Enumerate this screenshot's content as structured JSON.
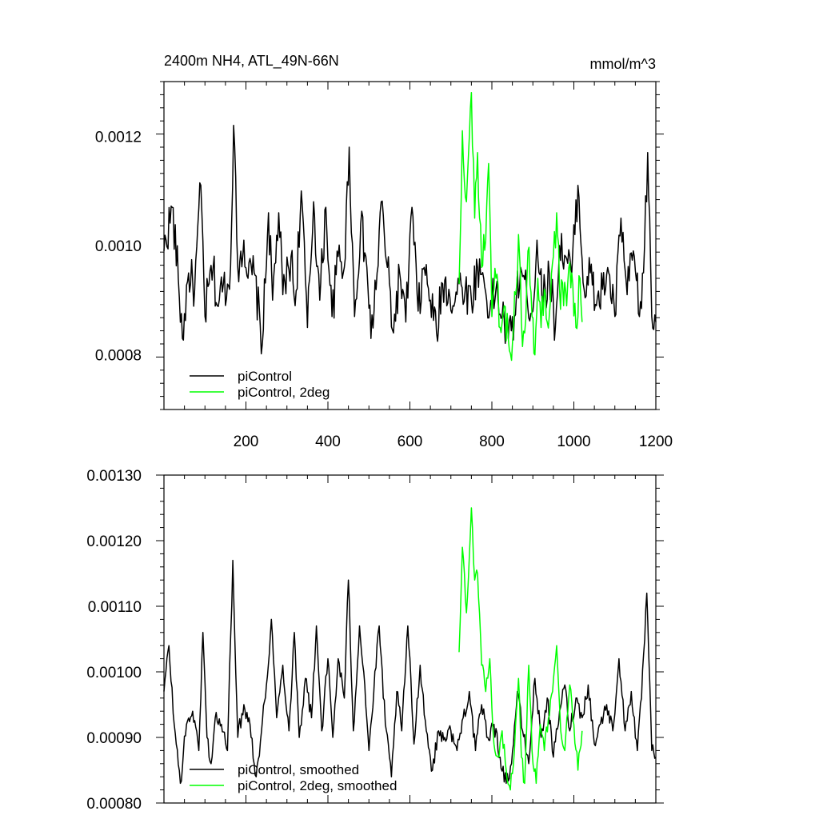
{
  "chart_data": [
    {
      "type": "line",
      "title": "2400m NH4, ATL_49N-66N",
      "units": "mmol/m^3",
      "xlim": [
        0,
        1200
      ],
      "ylim": [
        0.0007,
        0.0013
      ],
      "x_ticks": [
        200,
        400,
        600,
        800,
        1000,
        1200
      ],
      "y_ticks": [
        "0.0008",
        "0.0010",
        "0.0012"
      ],
      "y_tick_values": [
        0.0008,
        0.001,
        0.0012
      ],
      "legend_position": "bottom-left",
      "series": [
        {
          "name": "piControl",
          "color": "#000000",
          "x_start": 0,
          "x_end": 1200,
          "points": [
            [
              0,
              0.00099
            ],
            [
              20,
              0.00107
            ],
            [
              35,
              0.00094
            ],
            [
              45,
              0.00083
            ],
            [
              60,
              0.00095
            ],
            [
              75,
              0.00092
            ],
            [
              90,
              0.00111
            ],
            [
              100,
              0.00087
            ],
            [
              110,
              0.00093
            ],
            [
              120,
              0.00096
            ],
            [
              130,
              0.00089
            ],
            [
              145,
              0.00093
            ],
            [
              160,
              0.00092
            ],
            [
              170,
              0.00122
            ],
            [
              180,
              0.00096
            ],
            [
              195,
              0.00101
            ],
            [
              205,
              0.00094
            ],
            [
              220,
              0.00095
            ],
            [
              240,
              0.00082
            ],
            [
              255,
              0.00106
            ],
            [
              265,
              0.0009
            ],
            [
              280,
              0.00106
            ],
            [
              290,
              0.00091
            ],
            [
              310,
              0.00098
            ],
            [
              320,
              0.00089
            ],
            [
              335,
              0.0011
            ],
            [
              350,
              0.00085
            ],
            [
              365,
              0.00108
            ],
            [
              380,
              0.0009
            ],
            [
              395,
              0.00107
            ],
            [
              410,
              0.00087
            ],
            [
              425,
              0.00098
            ],
            [
              440,
              0.00096
            ],
            [
              452,
              0.00118
            ],
            [
              465,
              0.00087
            ],
            [
              480,
              0.00104
            ],
            [
              495,
              0.00096
            ],
            [
              505,
              0.00083
            ],
            [
              520,
              0.00095
            ],
            [
              530,
              0.00108
            ],
            [
              545,
              0.00096
            ],
            [
              560,
              0.00084
            ],
            [
              575,
              0.00095
            ],
            [
              590,
              0.00086
            ],
            [
              605,
              0.00107
            ],
            [
              620,
              0.00088
            ],
            [
              635,
              0.00096
            ],
            [
              650,
              0.0009
            ],
            [
              665,
              0.00084
            ],
            [
              680,
              0.00093
            ],
            [
              695,
              0.00092
            ],
            [
              705,
              0.00089
            ],
            [
              720,
              0.00093
            ],
            [
              735,
              0.00092
            ],
            [
              750,
              0.0009
            ],
            [
              765,
              0.00096
            ],
            [
              780,
              0.00094
            ],
            [
              795,
              0.00088
            ],
            [
              810,
              0.00092
            ],
            [
              825,
              0.00087
            ],
            [
              840,
              0.00083
            ],
            [
              855,
              0.00087
            ],
            [
              870,
              0.00096
            ],
            [
              885,
              0.00091
            ],
            [
              900,
              0.00088
            ],
            [
              910,
              0.00101
            ],
            [
              925,
              0.0009
            ],
            [
              940,
              0.00095
            ],
            [
              955,
              0.00085
            ],
            [
              965,
              0.001
            ],
            [
              980,
              0.00098
            ],
            [
              995,
              0.00095
            ],
            [
              1010,
              0.00111
            ],
            [
              1025,
              0.00092
            ],
            [
              1040,
              0.00095
            ],
            [
              1055,
              0.00089
            ],
            [
              1070,
              0.00092
            ],
            [
              1085,
              0.00095
            ],
            [
              1100,
              0.00087
            ],
            [
              1115,
              0.00105
            ],
            [
              1130,
              0.00091
            ],
            [
              1145,
              0.00099
            ],
            [
              1160,
              0.00087
            ],
            [
              1170,
              0.00095
            ],
            [
              1180,
              0.00117
            ],
            [
              1190,
              0.00087
            ],
            [
              1200,
              0.00086
            ]
          ]
        },
        {
          "name": "piControl, 2deg",
          "color": "#00ff00",
          "x_start": 720,
          "x_end": 1020,
          "points": [
            [
              720,
              0.00093
            ],
            [
              728,
              0.00121
            ],
            [
              738,
              0.00108
            ],
            [
              750,
              0.00128
            ],
            [
              758,
              0.00105
            ],
            [
              765,
              0.00117
            ],
            [
              775,
              0.00096
            ],
            [
              785,
              0.00101
            ],
            [
              792,
              0.00115
            ],
            [
              800,
              0.00087
            ],
            [
              810,
              0.00094
            ],
            [
              820,
              0.00085
            ],
            [
              830,
              0.00089
            ],
            [
              840,
              0.00083
            ],
            [
              848,
              0.00079
            ],
            [
              858,
              0.00091
            ],
            [
              865,
              0.00102
            ],
            [
              872,
              0.00086
            ],
            [
              880,
              0.00084
            ],
            [
              888,
              0.00099
            ],
            [
              898,
              0.00087
            ],
            [
              905,
              0.0008
            ],
            [
              912,
              0.00094
            ],
            [
              920,
              0.00085
            ],
            [
              928,
              0.00092
            ],
            [
              935,
              0.00086
            ],
            [
              943,
              0.0009
            ],
            [
              950,
              0.00098
            ],
            [
              958,
              0.00106
            ],
            [
              965,
              0.00092
            ],
            [
              975,
              0.00089
            ],
            [
              985,
              0.00093
            ],
            [
              995,
              0.00095
            ],
            [
              1005,
              0.00085
            ],
            [
              1015,
              0.00094
            ],
            [
              1020,
              0.00086
            ]
          ]
        }
      ],
      "legend": [
        "piControl",
        "piControl, 2deg"
      ]
    },
    {
      "type": "line",
      "title": "",
      "xlim": [
        0,
        1200
      ],
      "ylim": [
        0.0008,
        0.0013
      ],
      "y_ticks": [
        "0.00130",
        "0.00120",
        "0.00110",
        "0.00100",
        "0.00090",
        "0.00080"
      ],
      "y_tick_values": [
        0.0013,
        0.0012,
        0.0011,
        0.001,
        0.0009,
        0.0008
      ],
      "legend_position": "bottom-left",
      "series": [
        {
          "name": "piControl, smoothed",
          "color": "#000000",
          "x_start": 0,
          "x_end": 1200,
          "points": [
            [
              0,
              0.00097
            ],
            [
              12,
              0.00104
            ],
            [
              25,
              0.00092
            ],
            [
              40,
              0.00083
            ],
            [
              55,
              0.00092
            ],
            [
              70,
              0.00094
            ],
            [
              85,
              0.00088
            ],
            [
              95,
              0.00106
            ],
            [
              105,
              0.0009
            ],
            [
              115,
              0.00086
            ],
            [
              125,
              0.00093
            ],
            [
              140,
              0.00092
            ],
            [
              155,
              0.00088
            ],
            [
              168,
              0.00117
            ],
            [
              180,
              0.0009
            ],
            [
              195,
              0.00095
            ],
            [
              210,
              0.00092
            ],
            [
              225,
              0.00084
            ],
            [
              238,
              0.00091
            ],
            [
              250,
              0.00098
            ],
            [
              262,
              0.00108
            ],
            [
              275,
              0.00093
            ],
            [
              290,
              0.00101
            ],
            [
              305,
              0.00091
            ],
            [
              318,
              0.00106
            ],
            [
              330,
              0.0009
            ],
            [
              345,
              0.00099
            ],
            [
              360,
              0.00093
            ],
            [
              372,
              0.00107
            ],
            [
              385,
              0.00091
            ],
            [
              400,
              0.00102
            ],
            [
              412,
              0.0009
            ],
            [
              425,
              0.00102
            ],
            [
              440,
              0.00096
            ],
            [
              450,
              0.00114
            ],
            [
              462,
              0.00091
            ],
            [
              477,
              0.00107
            ],
            [
              490,
              0.00098
            ],
            [
              500,
              0.00088
            ],
            [
              512,
              0.00097
            ],
            [
              525,
              0.00107
            ],
            [
              540,
              0.00092
            ],
            [
              555,
              0.00084
            ],
            [
              568,
              0.00097
            ],
            [
              580,
              0.00091
            ],
            [
              595,
              0.00107
            ],
            [
              610,
              0.00089
            ],
            [
              625,
              0.00101
            ],
            [
              640,
              0.00091
            ],
            [
              655,
              0.00085
            ],
            [
              670,
              0.00091
            ],
            [
              685,
              0.0009
            ],
            [
              700,
              0.00091
            ],
            [
              715,
              0.00088
            ],
            [
              730,
              0.00093
            ],
            [
              745,
              0.00097
            ],
            [
              760,
              0.00088
            ],
            [
              775,
              0.00095
            ],
            [
              790,
              0.0009
            ],
            [
              805,
              0.00092
            ],
            [
              820,
              0.00087
            ],
            [
              835,
              0.00083
            ],
            [
              848,
              0.00086
            ],
            [
              862,
              0.00097
            ],
            [
              875,
              0.00091
            ],
            [
              890,
              0.00086
            ],
            [
              905,
              0.00099
            ],
            [
              920,
              0.0009
            ],
            [
              935,
              0.00096
            ],
            [
              950,
              0.00087
            ],
            [
              965,
              0.00094
            ],
            [
              978,
              0.00098
            ],
            [
              990,
              0.00091
            ],
            [
              1005,
              0.00096
            ],
            [
              1020,
              0.00093
            ],
            [
              1035,
              0.00098
            ],
            [
              1050,
              0.00089
            ],
            [
              1065,
              0.00092
            ],
            [
              1080,
              0.00095
            ],
            [
              1095,
              0.00091
            ],
            [
              1110,
              0.00102
            ],
            [
              1125,
              0.00091
            ],
            [
              1140,
              0.00097
            ],
            [
              1155,
              0.00088
            ],
            [
              1165,
              0.00096
            ],
            [
              1178,
              0.00112
            ],
            [
              1190,
              0.00088
            ],
            [
              1200,
              0.00087
            ]
          ]
        },
        {
          "name": "piControl, 2deg, smoothed",
          "color": "#00ff00",
          "x_start": 720,
          "x_end": 1020,
          "points": [
            [
              720,
              0.00103
            ],
            [
              728,
              0.00119
            ],
            [
              738,
              0.00109
            ],
            [
              750,
              0.00125
            ],
            [
              758,
              0.00114
            ],
            [
              765,
              0.00115
            ],
            [
              775,
              0.00101
            ],
            [
              785,
              0.00097
            ],
            [
              795,
              0.00102
            ],
            [
              805,
              0.00089
            ],
            [
              815,
              0.00087
            ],
            [
              825,
              0.00091
            ],
            [
              835,
              0.00085
            ],
            [
              845,
              0.00082
            ],
            [
              855,
              0.00088
            ],
            [
              865,
              0.00099
            ],
            [
              872,
              0.00087
            ],
            [
              880,
              0.00083
            ],
            [
              890,
              0.00101
            ],
            [
              898,
              0.00088
            ],
            [
              908,
              0.00083
            ],
            [
              918,
              0.00092
            ],
            [
              928,
              0.00088
            ],
            [
              938,
              0.00093
            ],
            [
              948,
              0.00097
            ],
            [
              958,
              0.00104
            ],
            [
              968,
              0.00091
            ],
            [
              978,
              0.00088
            ],
            [
              990,
              0.00098
            ],
            [
              1000,
              0.00092
            ],
            [
              1010,
              0.00085
            ],
            [
              1020,
              0.00091
            ]
          ]
        }
      ],
      "legend": [
        "piControl, smoothed",
        "piControl, 2deg, smoothed"
      ]
    }
  ]
}
